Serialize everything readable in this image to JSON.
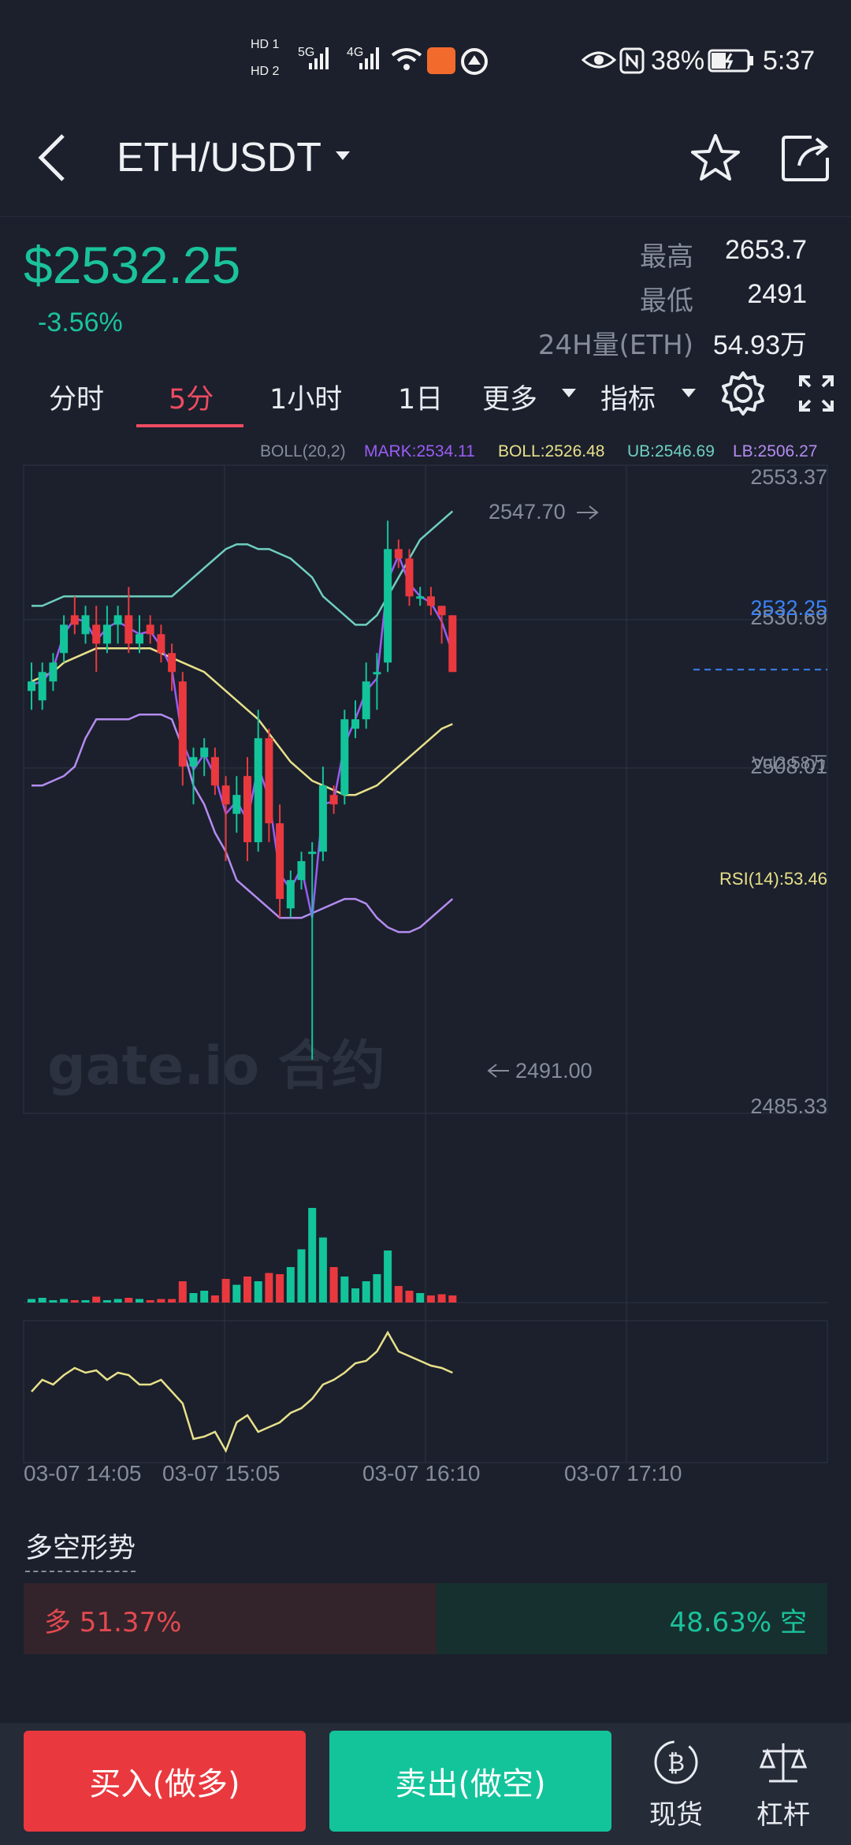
{
  "status_bar": {
    "time": "5:37",
    "battery": "38%",
    "sim1": "HD 1",
    "sim2": "HD 2",
    "net1": "5G",
    "net2": "4G"
  },
  "header": {
    "title": "ETH/USDT",
    "back_icon": "back-arrow-icon",
    "favorite_icon": "star-icon",
    "share_icon": "share-icon"
  },
  "ticker": {
    "price": "$2532.25",
    "change": "-3.56%",
    "high_label": "最高",
    "high_value": "2653.7",
    "low_label": "最低",
    "low_value": "2491",
    "volume_label": "24H量(ETH)",
    "volume_value": "54.93万"
  },
  "timeframes": {
    "tabs": [
      "分时",
      "5分",
      "1小时",
      "1日",
      "更多",
      "指标"
    ],
    "active": "5分"
  },
  "chart": {
    "indicator_line": {
      "boll": "BOLL(20,2)",
      "mark": "MARK:2534.11",
      "mid": "BOLL:2526.48",
      "ub": "UB:2546.69",
      "lb": "LB:2506.27"
    },
    "price_labels": [
      "2553.37",
      "2530.69",
      "2508.01",
      "2485.33"
    ],
    "current_price_tag": "2532.25",
    "high_marker": "2547.70",
    "low_marker": "2491.00",
    "watermark": "gate.io 合约",
    "vol_label": "Vol2.58万",
    "rsi_label": "RSI(14):53.46",
    "time_labels": [
      "03-07 14:05",
      "03-07 15:05",
      "03-07 16:10",
      "03-07 17:10"
    ],
    "colors": {
      "up": "#13c49b",
      "down": "#e9393f",
      "mid": "#e8e08a",
      "ub": "#6fcfbf",
      "lb": "#b48cf0",
      "mark": "#9b5cf5"
    }
  },
  "chart_data": {
    "type": "candlestick",
    "ylim": [
      2485.33,
      2553.37
    ],
    "candles": [
      {
        "o": 2530,
        "h": 2533,
        "l": 2528,
        "c": 2531
      },
      {
        "o": 2529,
        "h": 2533,
        "l": 2528,
        "c": 2532
      },
      {
        "o": 2531,
        "h": 2534,
        "l": 2530,
        "c": 2533
      },
      {
        "o": 2534,
        "h": 2538,
        "l": 2533,
        "c": 2537
      },
      {
        "o": 2538,
        "h": 2540,
        "l": 2536,
        "c": 2537
      },
      {
        "o": 2536,
        "h": 2539,
        "l": 2535,
        "c": 2538
      },
      {
        "o": 2537,
        "h": 2539,
        "l": 2532,
        "c": 2535
      },
      {
        "o": 2535,
        "h": 2539,
        "l": 2534,
        "c": 2537
      },
      {
        "o": 2537,
        "h": 2539,
        "l": 2535,
        "c": 2538
      },
      {
        "o": 2538,
        "h": 2541,
        "l": 2534,
        "c": 2535
      },
      {
        "o": 2535,
        "h": 2538,
        "l": 2534,
        "c": 2536
      },
      {
        "o": 2537,
        "h": 2538,
        "l": 2535,
        "c": 2536
      },
      {
        "o": 2536,
        "h": 2537,
        "l": 2533,
        "c": 2534
      },
      {
        "o": 2534,
        "h": 2535,
        "l": 2530,
        "c": 2532
      },
      {
        "o": 2531,
        "h": 2532,
        "l": 2520,
        "c": 2522
      },
      {
        "o": 2522,
        "h": 2524,
        "l": 2518,
        "c": 2523
      },
      {
        "o": 2523,
        "h": 2525,
        "l": 2521,
        "c": 2524
      },
      {
        "o": 2523,
        "h": 2524,
        "l": 2519,
        "c": 2520
      },
      {
        "o": 2520,
        "h": 2521,
        "l": 2512,
        "c": 2518
      },
      {
        "o": 2517,
        "h": 2521,
        "l": 2515,
        "c": 2519
      },
      {
        "o": 2521,
        "h": 2523,
        "l": 2512,
        "c": 2514
      },
      {
        "o": 2514,
        "h": 2528,
        "l": 2513,
        "c": 2525
      },
      {
        "o": 2525,
        "h": 2526,
        "l": 2514,
        "c": 2516
      },
      {
        "o": 2516,
        "h": 2518,
        "l": 2506,
        "c": 2508
      },
      {
        "o": 2507,
        "h": 2511,
        "l": 2506,
        "c": 2510
      },
      {
        "o": 2510,
        "h": 2513,
        "l": 2509,
        "c": 2512
      },
      {
        "o": 2513,
        "h": 2514,
        "l": 2491,
        "c": 2513
      },
      {
        "o": 2513,
        "h": 2522,
        "l": 2512,
        "c": 2520
      },
      {
        "o": 2519,
        "h": 2520,
        "l": 2517,
        "c": 2518
      },
      {
        "o": 2519,
        "h": 2528,
        "l": 2518,
        "c": 2527
      },
      {
        "o": 2526,
        "h": 2529,
        "l": 2525,
        "c": 2527
      },
      {
        "o": 2527,
        "h": 2533,
        "l": 2526,
        "c": 2531
      },
      {
        "o": 2532,
        "h": 2534,
        "l": 2528,
        "c": 2532
      },
      {
        "o": 2533,
        "h": 2548,
        "l": 2532,
        "c": 2545
      },
      {
        "o": 2545,
        "h": 2546,
        "l": 2543,
        "c": 2544
      },
      {
        "o": 2544,
        "h": 2545,
        "l": 2539,
        "c": 2540
      },
      {
        "o": 2540,
        "h": 2541,
        "l": 2539,
        "c": 2540
      },
      {
        "o": 2540,
        "h": 2541,
        "l": 2538,
        "c": 2539
      },
      {
        "o": 2539,
        "h": 2539,
        "l": 2535,
        "c": 2538
      },
      {
        "o": 2538,
        "h": 2538,
        "l": 2532,
        "c": 2532
      }
    ],
    "boll_upper": [
      2539,
      2539,
      2539.5,
      2540,
      2540,
      2540,
      2540,
      2540,
      2540,
      2540,
      2540,
      2540,
      2540,
      2540,
      2541,
      2542,
      2543,
      2544,
      2545,
      2545.5,
      2545.5,
      2545,
      2545,
      2544.5,
      2544,
      2543,
      2542,
      2540,
      2539,
      2538,
      2537,
      2537,
      2538,
      2540,
      2542,
      2544,
      2546,
      2547,
      2548,
      2549
    ],
    "boll_mid": [
      2531,
      2531.5,
      2532,
      2533,
      2533.5,
      2534,
      2534.5,
      2534.5,
      2534.5,
      2534.5,
      2534.5,
      2534.5,
      2534,
      2533.5,
      2533,
      2532.5,
      2532,
      2531,
      2530,
      2529,
      2528,
      2527,
      2525.5,
      2524,
      2522.5,
      2521.5,
      2520.5,
      2520,
      2519.5,
      2519,
      2519,
      2519.5,
      2520,
      2521,
      2522,
      2523,
      2524,
      2525,
      2526,
      2526.5
    ],
    "boll_lower": [
      2520,
      2520,
      2520.5,
      2521,
      2522,
      2525,
      2527,
      2527,
      2527,
      2527,
      2527.5,
      2527.5,
      2527.5,
      2527,
      2524,
      2520,
      2518,
      2515,
      2513,
      2510,
      2509,
      2508,
      2507,
      2506,
      2506,
      2506,
      2506.5,
      2507,
      2507.5,
      2508,
      2508,
      2507.5,
      2506,
      2505,
      2504.5,
      2504.5,
      2505,
      2506,
      2507,
      2508
    ],
    "volume": [
      3,
      4,
      2,
      3,
      2,
      2,
      5,
      2,
      3,
      4,
      3,
      2,
      3,
      3,
      18,
      8,
      10,
      6,
      20,
      15,
      22,
      18,
      25,
      24,
      30,
      45,
      80,
      55,
      30,
      22,
      12,
      18,
      24,
      44,
      14,
      10,
      8,
      6,
      7,
      6
    ],
    "rsi": [
      55,
      60,
      58,
      62,
      65,
      63,
      64,
      60,
      63,
      62,
      58,
      58,
      60,
      55,
      50,
      35,
      36,
      38,
      30,
      42,
      45,
      38,
      40,
      42,
      46,
      48,
      52,
      58,
      60,
      63,
      67,
      68,
      72,
      80,
      72,
      70,
      68,
      66,
      65,
      63
    ]
  },
  "sentiment": {
    "title": "多空形势",
    "long_label": "多 51.37%",
    "short_label": "48.63% 空",
    "long_pct": 51.37,
    "short_pct": 48.63
  },
  "bottom_bar": {
    "buy": "买入(做多)",
    "sell": "卖出(做空)",
    "spot": "现货",
    "leverage": "杠杆"
  }
}
